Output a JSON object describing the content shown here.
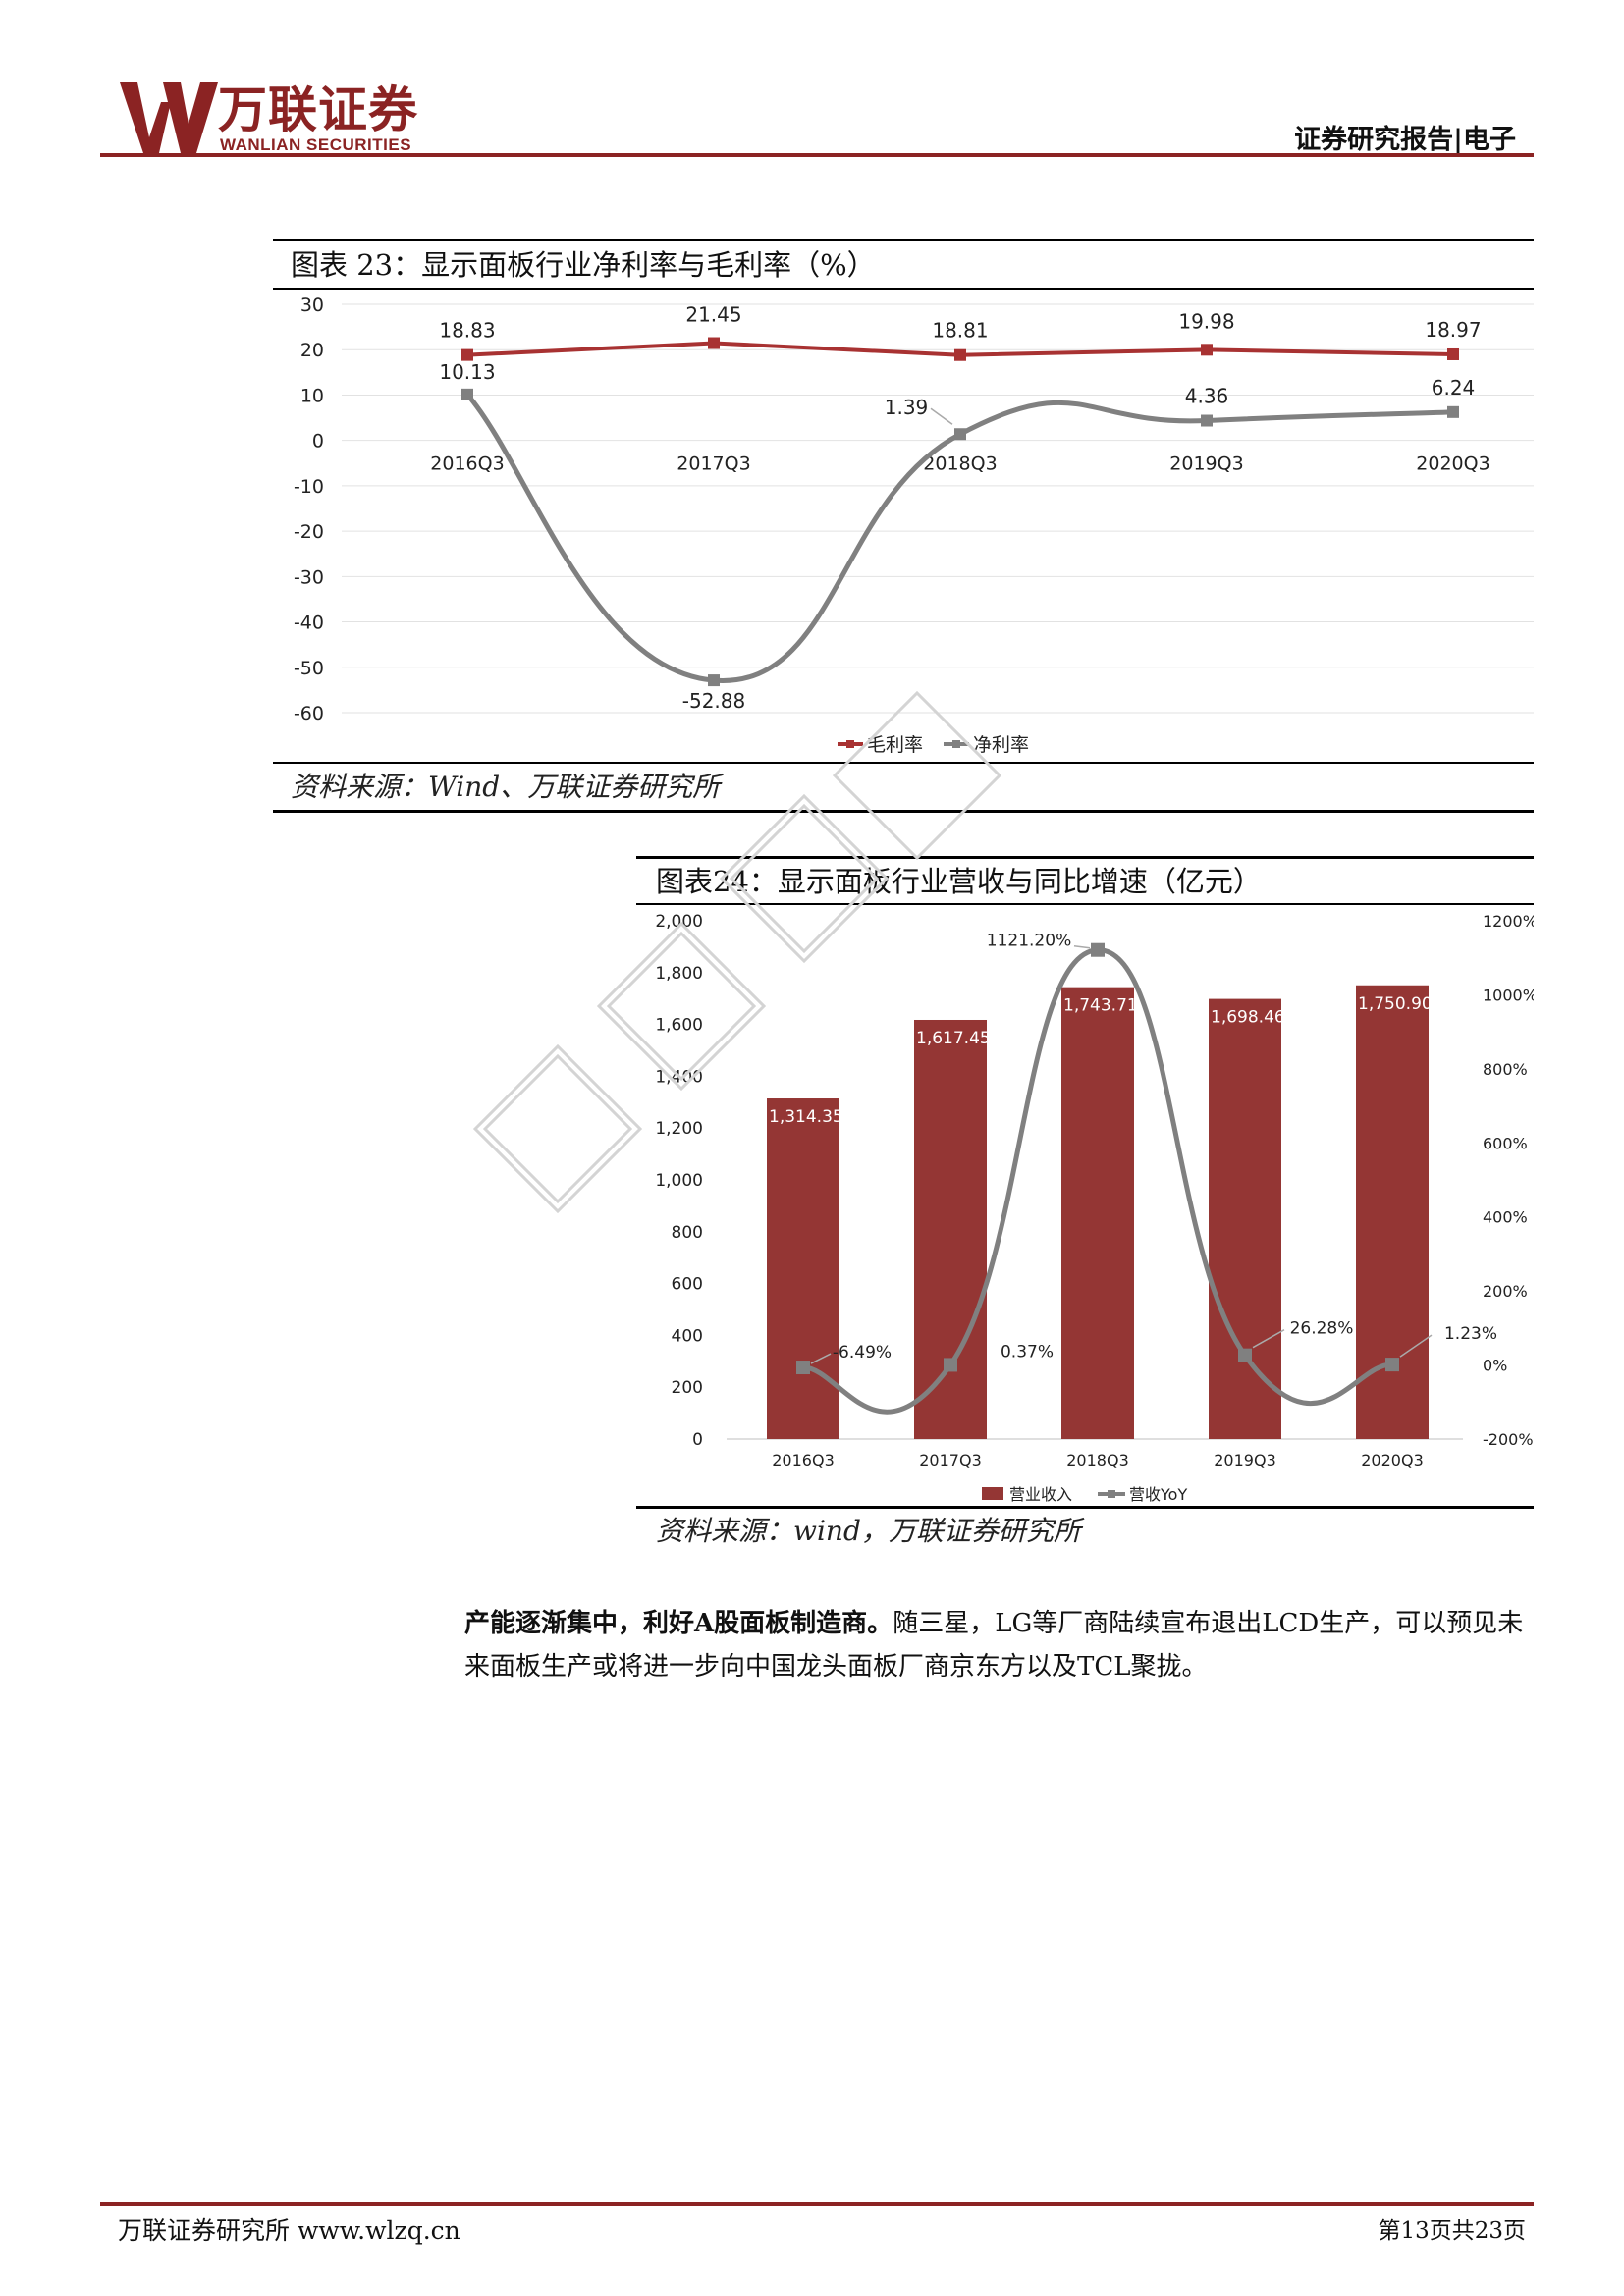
{
  "header": {
    "brand_cn": "万联证券",
    "brand_en": "WANLIAN SECURITIES",
    "report_type": "证券研究报告|电子",
    "colors": {
      "brand": "#8b2323"
    }
  },
  "figure23": {
    "title": "图表 23：显示面板行业净利率与毛利率（%）",
    "source": "资料来源：Wind、万联证券研究所"
  },
  "figure24": {
    "title": "图表24：显示面板行业营收与同比增速（亿元）",
    "source": "资料来源：wind，万联证券研究所"
  },
  "chart_data": [
    {
      "type": "line",
      "categories": [
        "2016Q3",
        "2017Q3",
        "2018Q3",
        "2019Q3",
        "2020Q3"
      ],
      "series": [
        {
          "name": "毛利率",
          "values": [
            18.83,
            21.45,
            18.81,
            19.98,
            18.97
          ],
          "labels": [
            "18.83",
            "21.45",
            "18.81",
            "19.98",
            "18.97"
          ],
          "color": "#a83232"
        },
        {
          "name": "净利率",
          "values": [
            10.13,
            -52.88,
            1.39,
            4.36,
            6.24
          ],
          "labels": [
            "10.13",
            "-52.88",
            "1.39",
            "4.36",
            "6.24"
          ],
          "color": "#808080"
        }
      ],
      "ylim": [
        -60,
        30
      ],
      "yticks": [
        "30",
        "20",
        "10",
        "0",
        "-10",
        "-20",
        "-30",
        "-40",
        "-50",
        "-60"
      ],
      "grid": true,
      "legend": "bottom"
    },
    {
      "type": "bar",
      "categories": [
        "2016Q3",
        "2017Q3",
        "2018Q3",
        "2019Q3",
        "2020Q3"
      ],
      "series": [
        {
          "name": "营业收入",
          "type": "bar",
          "axis": "left",
          "values": [
            1314.35,
            1617.45,
            1743.71,
            1698.46,
            1750.9
          ],
          "labels": [
            "1,314.35",
            "1,617.45",
            "1,743.71",
            "1,698.46",
            "1,750.90"
          ],
          "color": "#943634"
        },
        {
          "name": "营收YoY",
          "type": "line",
          "axis": "right",
          "values": [
            -6.49,
            0.37,
            1121.2,
            26.28,
            1.23
          ],
          "labels": [
            "-6.49%",
            "0.37%",
            "1121.20%",
            "26.28%",
            "1.23%"
          ],
          "color": "#808080"
        }
      ],
      "ylim": [
        0,
        2000
      ],
      "yticks": [
        "2,000",
        "1,800",
        "1,600",
        "1,400",
        "1,200",
        "1,000",
        "800",
        "600",
        "400",
        "200",
        "0"
      ],
      "y2lim": [
        -200,
        1200
      ],
      "y2ticks": [
        "1200%",
        "1000%",
        "800%",
        "600%",
        "400%",
        "200%",
        "0%",
        "-200%"
      ],
      "grid": false,
      "legend": "bottom"
    }
  ],
  "paragraph": {
    "bold": "产能逐渐集中，利好A股面板制造商。",
    "text": "随三星，LG等厂商陆续宣布退出LCD生产，可以预见未来面板生产或将进一步向中国龙头面板厂商京东方以及TCL聚拢。"
  },
  "footer": {
    "left": "万联证券研究所 www.wlzq.cn",
    "right": "第13页共23页"
  }
}
